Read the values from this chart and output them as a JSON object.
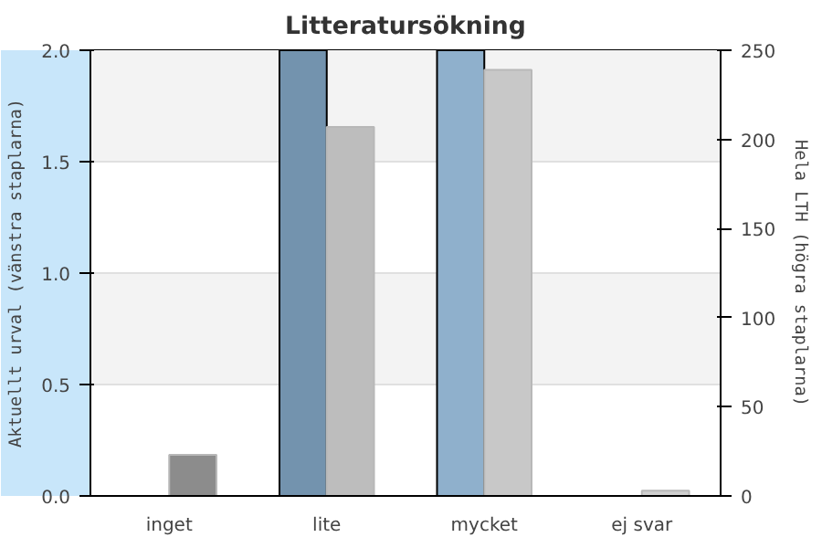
{
  "chart_data": {
    "type": "bar",
    "title": "Litteratursökning",
    "categories": [
      "inget",
      "lite",
      "mycket",
      "ej svar"
    ],
    "series": [
      {
        "colors": [
          "#7393ae",
          "#7393ae",
          "#8fb0cc",
          "#8fb0cc"
        ],
        "values": [
          0,
          2.0,
          2.0,
          0
        ]
      },
      {
        "colors": [
          "#8c8c8c",
          "#bdbdbd",
          "#c8c8c8",
          "#d0d0d0"
        ],
        "values": [
          23,
          207,
          239,
          3
        ],
        "axis": "y2"
      }
    ],
    "ylabel": "Aktuellt urval (vänstra staplarna)",
    "y2label": "Hela LTH (högra staplarna)",
    "ylim": [
      0,
      2.0
    ],
    "yticks": [
      {
        "value": 0,
        "label": "0.0"
      },
      {
        "value": 0.5,
        "label": "0.5"
      },
      {
        "value": 1.0,
        "label": "1.0"
      },
      {
        "value": 1.5,
        "label": "1.5"
      },
      {
        "value": 2.0,
        "label": "2.0"
      }
    ],
    "y2lim": [
      0,
      250
    ],
    "y2ticks": [
      0,
      50,
      100,
      150,
      200,
      250
    ],
    "grid": "y"
  }
}
